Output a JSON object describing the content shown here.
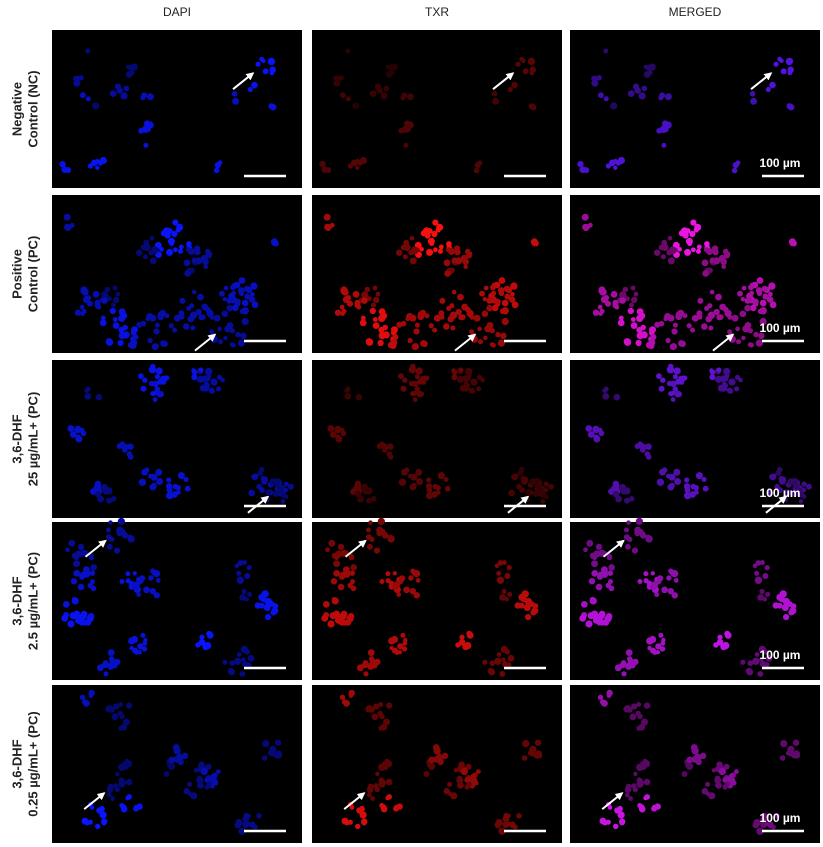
{
  "columns": [
    "DAPI",
    "TXR",
    "MERGED"
  ],
  "rows": [
    {
      "label": [
        "Negative",
        "Control (NC)"
      ]
    },
    {
      "label": [
        "Positive",
        "Control (PC)"
      ]
    },
    {
      "label": [
        "3,6-DHF",
        "25 µg/mL+ (PC)"
      ]
    },
    {
      "label": [
        "3,6-DHF",
        "2.5 µg/mL+ (PC)"
      ]
    },
    {
      "label": [
        "3,6-DHF",
        "0.25 µg/mL+ (PC)"
      ]
    }
  ],
  "scale_label": "100 µm"
}
